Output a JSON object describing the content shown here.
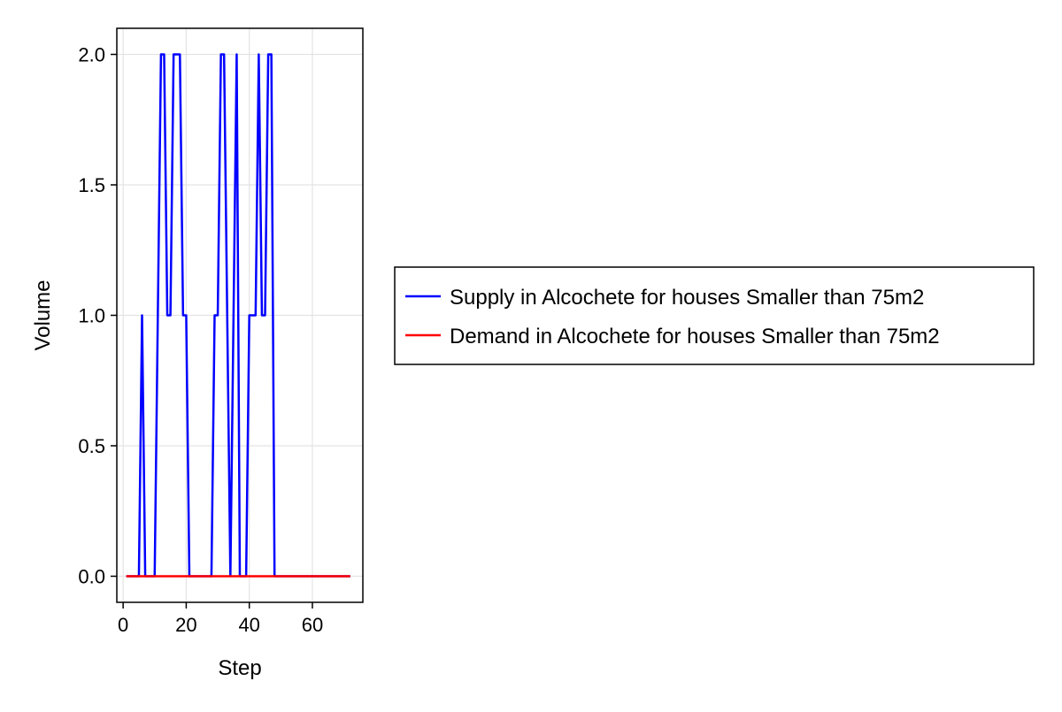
{
  "chart_data": {
    "type": "line",
    "xlabel": "Step",
    "ylabel": "Volume",
    "xlim": [
      -2,
      76
    ],
    "ylim": [
      -0.1,
      2.1
    ],
    "xticks": [
      0,
      20,
      40,
      60
    ],
    "yticks": [
      0.0,
      0.5,
      1.0,
      1.5,
      2.0
    ],
    "xtick_labels": [
      "0",
      "20",
      "40",
      "60"
    ],
    "ytick_labels": [
      "0.0",
      "0.5",
      "1.0",
      "1.5",
      "2.0"
    ],
    "grid": true,
    "legend_position": "right",
    "series": [
      {
        "name": "Supply in Alcochete for houses Smaller than 75m2",
        "color": "#0000ff",
        "x": [
          1,
          2,
          3,
          4,
          5,
          6,
          7,
          8,
          9,
          10,
          11,
          12,
          13,
          14,
          15,
          16,
          17,
          18,
          19,
          20,
          21,
          22,
          23,
          24,
          25,
          26,
          27,
          28,
          29,
          30,
          31,
          32,
          33,
          34,
          35,
          36,
          37,
          38,
          39,
          40,
          41,
          42,
          43,
          44,
          45,
          46,
          47,
          48,
          49,
          50,
          51,
          52,
          53,
          54,
          55,
          56,
          57,
          58,
          59,
          60,
          61,
          62,
          63,
          64,
          65,
          66,
          67,
          68,
          69,
          70,
          71,
          72
        ],
        "y": [
          0,
          0,
          0,
          0,
          0,
          1,
          0,
          0,
          0,
          0,
          1,
          2,
          2,
          1,
          1,
          2,
          2,
          2,
          1,
          1,
          0,
          0,
          0,
          0,
          0,
          0,
          0,
          0,
          1,
          1,
          2,
          2,
          1,
          0,
          1,
          2,
          0,
          0,
          0,
          1,
          1,
          1,
          2,
          1,
          1,
          2,
          2,
          0,
          0,
          0,
          0,
          0,
          0,
          0,
          0,
          0,
          0,
          0,
          0,
          0,
          0,
          0,
          0,
          0,
          0,
          0,
          0,
          0,
          0,
          0,
          0,
          0
        ]
      },
      {
        "name": "Demand in Alcochete for houses Smaller than 75m2",
        "color": "#ff0000",
        "x": [
          1,
          72
        ],
        "y": [
          0,
          0
        ]
      }
    ]
  }
}
